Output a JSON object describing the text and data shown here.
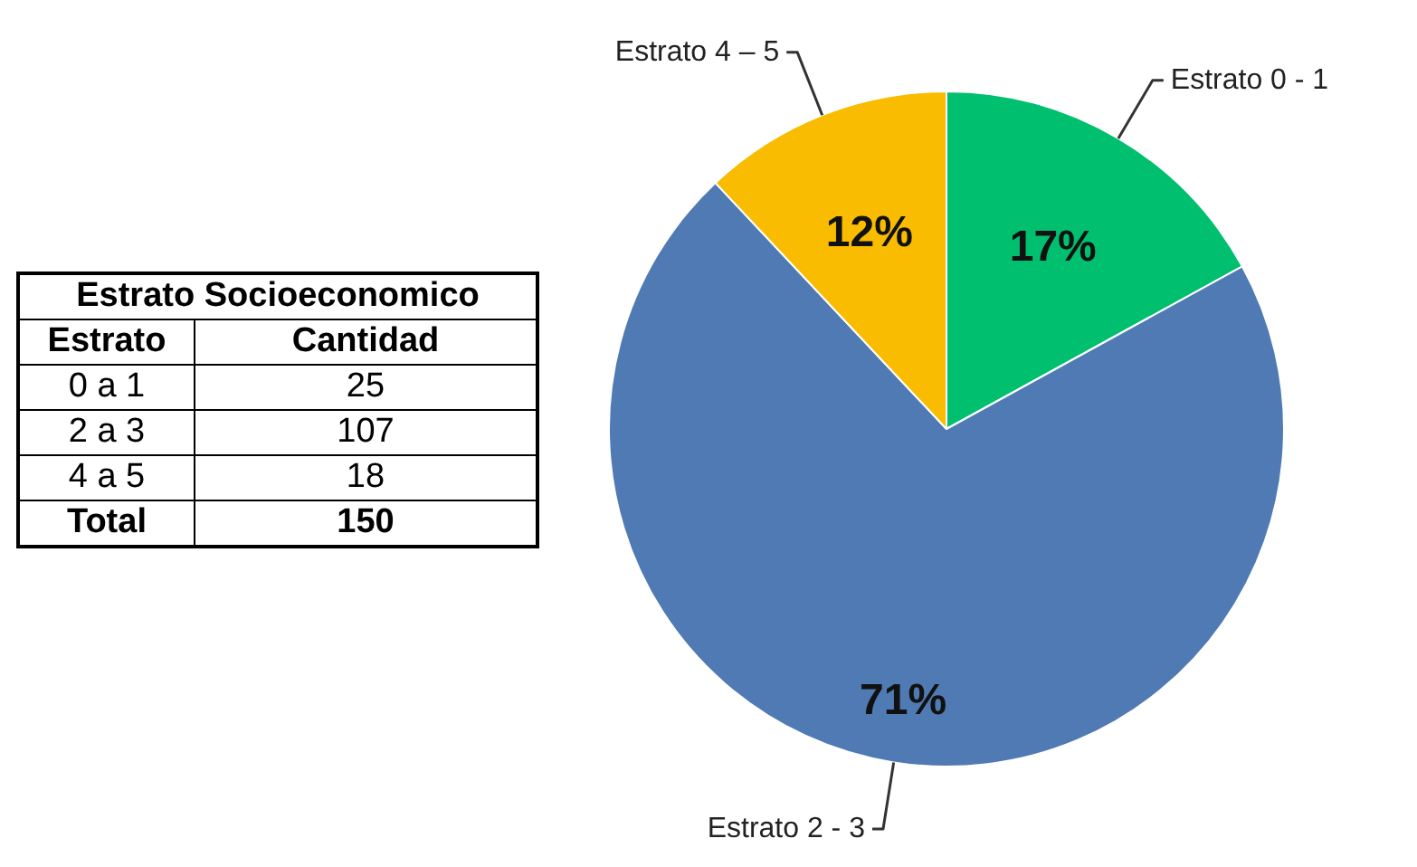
{
  "chart_data": [
    {
      "type": "other",
      "title": "Estrato Socioeconomico",
      "xlabel": "Estrato",
      "ylabel": "Cantidad",
      "categories": [
        "0 a 1",
        "2 a 3",
        "4 a 5",
        "Total"
      ],
      "values": [
        25,
        107,
        18,
        150
      ],
      "data_labels": true
    },
    {
      "type": "pie",
      "categories": [
        "Estrato 0 - 1",
        "Estrato 2 - 3",
        "Estrato 4 – 5"
      ],
      "values": [
        17,
        71,
        12
      ],
      "colors": [
        "#00c06f",
        "#4f7ab3",
        "#f9bc00"
      ],
      "value_labels": [
        "17%",
        "71%",
        "12%"
      ]
    }
  ]
}
